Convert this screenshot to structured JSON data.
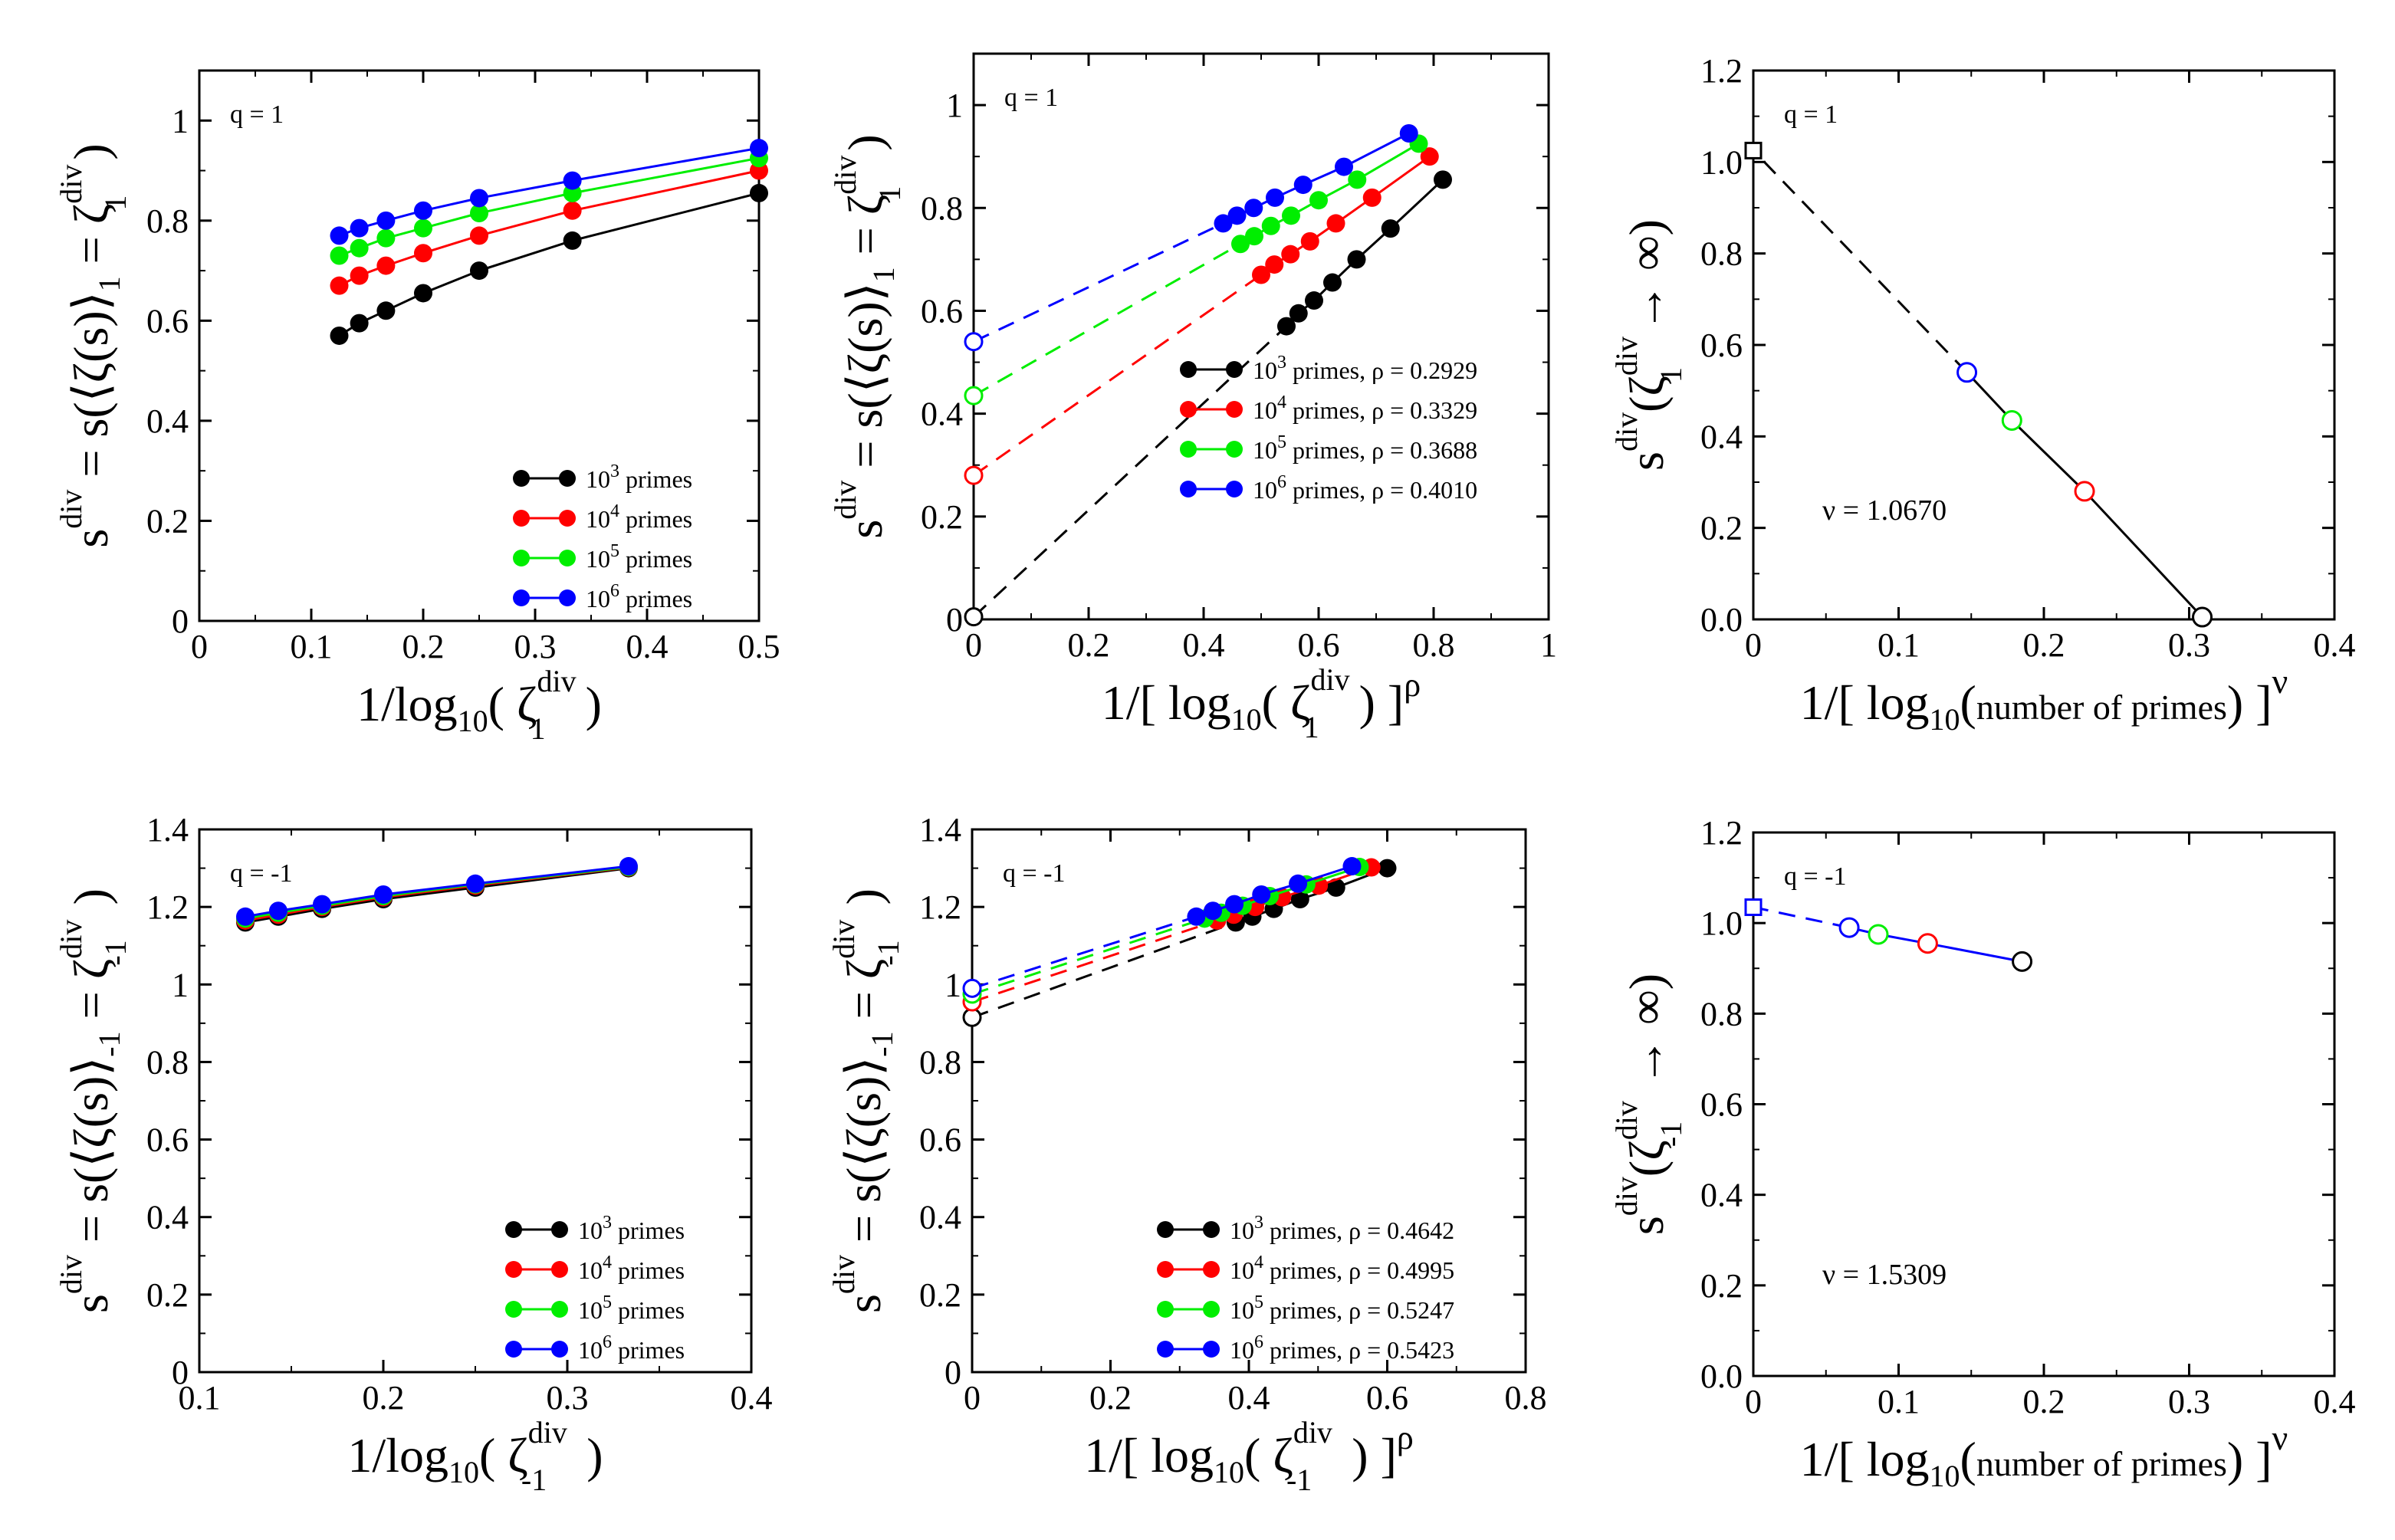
{
  "chart_data": [
    {
      "id": "p1",
      "type": "line",
      "annotation": "q = 1",
      "xlabel": "1/log10( ζ1div )",
      "ylabel": "sdiv = s(⟨ζ(s)⟩1 = ζ1div )",
      "xlim": [
        0,
        0.5
      ],
      "ylim": [
        0,
        1.1
      ],
      "xticks": [
        0,
        0.1,
        0.2,
        0.3,
        0.4,
        0.5
      ],
      "xticklabels": [
        "0",
        "0.1",
        "0.2",
        "0.3",
        "0.4",
        "0.5"
      ],
      "yticks": [
        0,
        0.2,
        0.4,
        0.6,
        0.8,
        1.0
      ],
      "yticklabels": [
        "0",
        "0.2",
        "0.4",
        "0.6",
        "0.8",
        "1"
      ],
      "legend_position": "bottom-right",
      "series": [
        {
          "name": "10^3 primes",
          "label": "10",
          "exp": "3",
          "suffix": " primes",
          "color": "#000000",
          "x": [
            0.125,
            0.1429,
            0.1667,
            0.2,
            0.25,
            0.3333,
            0.5
          ],
          "y": [
            0.57,
            0.595,
            0.62,
            0.655,
            0.7,
            0.76,
            0.855
          ]
        },
        {
          "name": "10^4 primes",
          "label": "10",
          "exp": "4",
          "suffix": " primes",
          "color": "#ff0000",
          "x": [
            0.125,
            0.1429,
            0.1667,
            0.2,
            0.25,
            0.3333,
            0.5
          ],
          "y": [
            0.67,
            0.69,
            0.71,
            0.735,
            0.77,
            0.82,
            0.9
          ]
        },
        {
          "name": "10^5 primes",
          "label": "10",
          "exp": "5",
          "suffix": " primes",
          "color": "#00ee00",
          "x": [
            0.125,
            0.1429,
            0.1667,
            0.2,
            0.25,
            0.3333,
            0.5
          ],
          "y": [
            0.73,
            0.745,
            0.765,
            0.785,
            0.815,
            0.855,
            0.925
          ]
        },
        {
          "name": "10^6 primes",
          "label": "10",
          "exp": "6",
          "suffix": " primes",
          "color": "#0000ff",
          "x": [
            0.125,
            0.1429,
            0.1667,
            0.2,
            0.25,
            0.3333,
            0.5
          ],
          "y": [
            0.77,
            0.785,
            0.8,
            0.82,
            0.845,
            0.88,
            0.945
          ]
        }
      ]
    },
    {
      "id": "p2",
      "type": "line",
      "annotation": "q = 1",
      "xlabel": "1/[ log10( ζ1div ) ]ρ",
      "ylabel": "sdiv = s(⟨ζ(s)⟩1 = ζ1div )",
      "xlim": [
        0,
        1
      ],
      "ylim": [
        0,
        1.1
      ],
      "xticks": [
        0,
        0.2,
        0.4,
        0.6,
        0.8,
        1.0
      ],
      "xticklabels": [
        "0",
        "0.2",
        "0.4",
        "0.6",
        "0.8",
        "1"
      ],
      "yticks": [
        0,
        0.2,
        0.4,
        0.6,
        0.8,
        1.0
      ],
      "yticklabels": [
        "0",
        "0.2",
        "0.4",
        "0.6",
        "0.8",
        "1"
      ],
      "legend_position": "bottom-right",
      "series": [
        {
          "name": "10^3 primes, ρ = 0.2929",
          "label": "10",
          "exp": "3",
          "suffix": " primes, ρ = 0.2929",
          "color": "#000000",
          "x": [
            0.544,
            0.565,
            0.592,
            0.624,
            0.666,
            0.725,
            0.816
          ],
          "y": [
            0.57,
            0.595,
            0.62,
            0.655,
            0.7,
            0.76,
            0.855
          ],
          "extrapolated": 0.005
        },
        {
          "name": "10^4 primes, ρ = 0.3329",
          "label": "10",
          "exp": "4",
          "suffix": " primes, ρ = 0.3329",
          "color": "#ff0000",
          "x": [
            0.5,
            0.523,
            0.551,
            0.585,
            0.63,
            0.693,
            0.793
          ],
          "y": [
            0.67,
            0.69,
            0.71,
            0.735,
            0.77,
            0.82,
            0.9
          ],
          "extrapolated": 0.28
        },
        {
          "name": "10^5 primes, ρ = 0.3688",
          "label": "10",
          "exp": "5",
          "suffix": " primes, ρ = 0.3688",
          "color": "#00ee00",
          "x": [
            0.464,
            0.488,
            0.517,
            0.552,
            0.6,
            0.667,
            0.774
          ],
          "y": [
            0.73,
            0.745,
            0.765,
            0.785,
            0.815,
            0.855,
            0.925
          ],
          "extrapolated": 0.435
        },
        {
          "name": "10^6 primes, ρ = 0.4010",
          "label": "10",
          "exp": "6",
          "suffix": " primes, ρ = 0.4010",
          "color": "#0000ff",
          "x": [
            0.434,
            0.458,
            0.487,
            0.524,
            0.573,
            0.644,
            0.757
          ],
          "y": [
            0.77,
            0.785,
            0.8,
            0.82,
            0.845,
            0.88,
            0.945
          ],
          "extrapolated": 0.54
        }
      ]
    },
    {
      "id": "p3",
      "type": "line",
      "annotation": "q = 1",
      "xlabel": "1/[ log10(number of primes) ]ν",
      "ylabel": "sdiv(ζ1div → ∞)",
      "xlim": [
        0,
        0.4
      ],
      "ylim": [
        0,
        1.2
      ],
      "xticks": [
        0,
        0.1,
        0.2,
        0.3,
        0.4
      ],
      "xticklabels": [
        "0",
        "0.1",
        "0.2",
        "0.3",
        "0.4"
      ],
      "yticks": [
        0,
        0.2,
        0.4,
        0.6,
        0.8,
        1.0,
        1.2
      ],
      "yticklabels": [
        "0.0",
        "0.2",
        "0.4",
        "0.6",
        "0.8",
        "1.0",
        "1.2"
      ],
      "nu_label": "ν = 1.0670",
      "points": [
        {
          "x": 0.309,
          "y": 0.005,
          "color": "#000000"
        },
        {
          "x": 0.228,
          "y": 0.28,
          "color": "#ff0000"
        },
        {
          "x": 0.178,
          "y": 0.435,
          "color": "#00ee00"
        },
        {
          "x": 0.147,
          "y": 0.54,
          "color": "#0000ff"
        }
      ],
      "limit": {
        "x": 0,
        "y": 1.025
      },
      "line_color": "#000000"
    },
    {
      "id": "p4",
      "type": "line",
      "annotation": "q = -1",
      "xlabel": "1/log10( ζ-1div )",
      "ylabel": "sdiv = s(⟨ζ(s)⟩-1 = ζ-1div )",
      "xlim": [
        0.1,
        0.4
      ],
      "ylim": [
        0,
        1.4
      ],
      "xticks": [
        0.1,
        0.2,
        0.3,
        0.4
      ],
      "xticklabels": [
        "0.1",
        "0.2",
        "0.3",
        "0.4"
      ],
      "yticks": [
        0,
        0.2,
        0.4,
        0.6,
        0.8,
        1.0,
        1.2,
        1.4
      ],
      "yticklabels": [
        "0",
        "0.2",
        "0.4",
        "0.6",
        "0.8",
        "1",
        "1.2",
        "1.4"
      ],
      "legend_position": "bottom-right",
      "series": [
        {
          "name": "10^3 primes",
          "label": "10",
          "exp": "3",
          "suffix": " primes",
          "color": "#000000",
          "x": [
            0.125,
            0.1429,
            0.1667,
            0.2,
            0.25,
            0.3333
          ],
          "y": [
            1.16,
            1.175,
            1.195,
            1.22,
            1.25,
            1.3
          ]
        },
        {
          "name": "10^4 primes",
          "label": "10",
          "exp": "4",
          "suffix": " primes",
          "color": "#ff0000",
          "x": [
            0.125,
            0.1429,
            0.1667,
            0.2,
            0.25,
            0.3333
          ],
          "y": [
            1.165,
            1.18,
            1.2,
            1.225,
            1.255,
            1.302
          ]
        },
        {
          "name": "10^5 primes",
          "label": "10",
          "exp": "5",
          "suffix": " primes",
          "color": "#00ee00",
          "x": [
            0.125,
            0.1429,
            0.1667,
            0.2,
            0.25,
            0.3333
          ],
          "y": [
            1.17,
            1.185,
            1.203,
            1.228,
            1.258,
            1.303
          ]
        },
        {
          "name": "10^6 primes",
          "label": "10",
          "exp": "6",
          "suffix": " primes",
          "color": "#0000ff",
          "x": [
            0.125,
            0.1429,
            0.1667,
            0.2,
            0.25,
            0.3333
          ],
          "y": [
            1.175,
            1.19,
            1.207,
            1.232,
            1.26,
            1.305
          ]
        }
      ]
    },
    {
      "id": "p5",
      "type": "line",
      "annotation": "q = -1",
      "xlabel": "1/[ log10( ζ-1div ) ]ρ",
      "ylabel": "sdiv = s(⟨ζ(s)⟩-1 = ζ-1div )",
      "xlim": [
        0,
        0.8
      ],
      "ylim": [
        0,
        1.4
      ],
      "xticks": [
        0,
        0.2,
        0.4,
        0.6,
        0.8
      ],
      "xticklabels": [
        "0",
        "0.2",
        "0.4",
        "0.6",
        "0.8"
      ],
      "yticks": [
        0,
        0.2,
        0.4,
        0.6,
        0.8,
        1.0,
        1.2,
        1.4
      ],
      "yticklabels": [
        "0",
        "0.2",
        "0.4",
        "0.6",
        "0.8",
        "1",
        "1.2",
        "1.4"
      ],
      "legend_position": "bottom-right",
      "series": [
        {
          "name": "10^3 primes, ρ = 0.4642",
          "label": "10",
          "exp": "3",
          "suffix": " primes, ρ = 0.4642",
          "color": "#000000",
          "x": [
            0.381,
            0.405,
            0.436,
            0.474,
            0.526,
            0.6
          ],
          "y": [
            1.16,
            1.175,
            1.195,
            1.22,
            1.25,
            1.3
          ],
          "extrapolated": 0.915
        },
        {
          "name": "10^4 primes, ρ = 0.4995",
          "label": "10",
          "exp": "4",
          "suffix": " primes, ρ = 0.4995",
          "color": "#ff0000",
          "x": [
            0.354,
            0.378,
            0.409,
            0.448,
            0.501,
            0.577
          ],
          "y": [
            1.165,
            1.18,
            1.2,
            1.225,
            1.255,
            1.302
          ],
          "extrapolated": 0.955
        },
        {
          "name": "10^5 primes, ρ = 0.5247",
          "label": "10",
          "exp": "5",
          "suffix": " primes, ρ = 0.5247",
          "color": "#00ee00",
          "x": [
            0.336,
            0.36,
            0.391,
            0.43,
            0.483,
            0.56
          ],
          "y": [
            1.17,
            1.185,
            1.203,
            1.228,
            1.258,
            1.303
          ],
          "extrapolated": 0.975
        },
        {
          "name": "10^6 primes, ρ = 0.5423",
          "label": "10",
          "exp": "6",
          "suffix": " primes, ρ = 0.5423",
          "color": "#0000ff",
          "x": [
            0.324,
            0.348,
            0.379,
            0.418,
            0.471,
            0.549
          ],
          "y": [
            1.175,
            1.19,
            1.207,
            1.232,
            1.26,
            1.305
          ],
          "extrapolated": 0.99
        }
      ]
    },
    {
      "id": "p6",
      "type": "line",
      "annotation": "q = -1",
      "xlabel": "1/[ log10(number of primes) ]ν",
      "ylabel": "sdiv(ζ-1div → ∞)",
      "xlim": [
        0,
        0.4
      ],
      "ylim": [
        0,
        1.2
      ],
      "xticks": [
        0,
        0.1,
        0.2,
        0.3,
        0.4
      ],
      "xticklabels": [
        "0",
        "0.1",
        "0.2",
        "0.3",
        "0.4"
      ],
      "yticks": [
        0,
        0.2,
        0.4,
        0.6,
        0.8,
        1.0,
        1.2
      ],
      "yticklabels": [
        "0.0",
        "0.2",
        "0.4",
        "0.6",
        "0.8",
        "1.0",
        "1.2"
      ],
      "nu_label": "ν = 1.5309",
      "points": [
        {
          "x": 0.185,
          "y": 0.915,
          "color": "#000000"
        },
        {
          "x": 0.12,
          "y": 0.955,
          "color": "#ff0000"
        },
        {
          "x": 0.086,
          "y": 0.975,
          "color": "#00ee00"
        },
        {
          "x": 0.066,
          "y": 0.99,
          "color": "#0000ff"
        }
      ],
      "limit": {
        "x": 0,
        "y": 1.035
      },
      "line_color": "#0000ff"
    }
  ]
}
